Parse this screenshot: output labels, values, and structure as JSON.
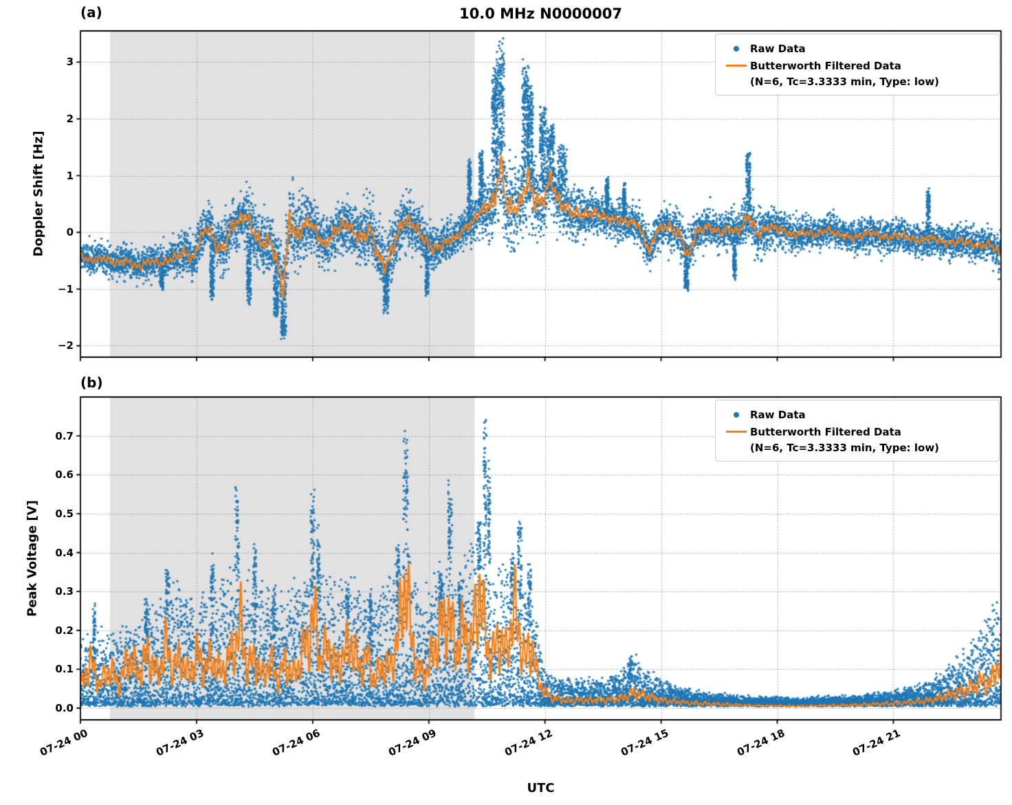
{
  "title": "10.0 MHz N0000007",
  "xlabel": "UTC",
  "colors": {
    "raw": "#1f77b4",
    "filtered": "#ff7f0e",
    "shade": "#e1e1e1",
    "grid": "#999999",
    "axis": "#000000"
  },
  "legend": {
    "raw_label": "Raw Data",
    "filtered_label": "Butterworth Filtered Data",
    "filtered_sublabel": "(N=6, Tc=3.3333 min, Type: low)"
  },
  "x_axis": {
    "min": 0,
    "max": 23.78,
    "tick_values": [
      0,
      3,
      6,
      9,
      12,
      15,
      18,
      21
    ],
    "tick_labels": [
      "07-24 00",
      "07-24 03",
      "07-24 06",
      "07-24 09",
      "07-24 12",
      "07-24 15",
      "07-24 18",
      "07-24 21"
    ]
  },
  "shaded_region": {
    "start": 0.76,
    "end": 10.18
  },
  "chart_data": [
    {
      "type": "scatter",
      "panel_label": "(a)",
      "ylabel": "Doppler Shift [Hz]",
      "ylim": [
        -2.2,
        3.55
      ],
      "ytick_values": [
        3,
        2,
        1,
        0,
        -1,
        -2
      ],
      "ytick_labels": [
        "3",
        "2",
        "1",
        "0",
        "−1",
        "−2"
      ],
      "series": [
        {
          "name": "Raw Data",
          "kind": "scatter"
        },
        {
          "name": "Butterworth Filtered Data (N=6, Tc=3.3333 min, Type: low)",
          "kind": "line"
        }
      ],
      "filtered_t": [
        0,
        0.3,
        0.6,
        0.9,
        1.2,
        1.5,
        1.8,
        2.1,
        2.4,
        2.7,
        2.9,
        3.1,
        3.3,
        3.5,
        3.7,
        3.9,
        4.1,
        4.3,
        4.5,
        4.7,
        4.9,
        5.1,
        5.25,
        5.4,
        5.55,
        5.7,
        5.9,
        6.1,
        6.3,
        6.5,
        6.7,
        6.9,
        7.1,
        7.3,
        7.5,
        7.7,
        7.9,
        8.1,
        8.3,
        8.5,
        8.7,
        8.9,
        9.1,
        9.3,
        9.5,
        9.7,
        9.9,
        10.1,
        10.3,
        10.5,
        10.7,
        10.85,
        11.0,
        11.2,
        11.4,
        11.55,
        11.7,
        11.9,
        12.0,
        12.15,
        12.3,
        12.5,
        12.7,
        13.0,
        13.3,
        13.6,
        14.0,
        14.4,
        14.7,
        14.9,
        15.2,
        15.5,
        15.7,
        15.9,
        16.2,
        16.5,
        16.8,
        17.0,
        17.25,
        17.5,
        17.8,
        18.1,
        18.4,
        18.7,
        19.0,
        19.3,
        19.6,
        20.0,
        20.4,
        20.8,
        21.2,
        21.6,
        22.0,
        22.4,
        22.8,
        23.2,
        23.5,
        23.78
      ],
      "filtered_v": [
        -0.42,
        -0.5,
        -0.45,
        -0.55,
        -0.5,
        -0.62,
        -0.5,
        -0.55,
        -0.45,
        -0.35,
        -0.5,
        -0.1,
        0.1,
        -0.25,
        -0.3,
        0.1,
        0.2,
        0.3,
        -0.05,
        -0.2,
        -0.15,
        -0.6,
        -1.05,
        0.3,
        -0.1,
        0.05,
        0.2,
        0.0,
        -0.25,
        -0.05,
        0.1,
        0.15,
        -0.05,
        -0.1,
        0.05,
        -0.45,
        -0.6,
        -0.2,
        0.15,
        0.2,
        0.05,
        -0.15,
        -0.3,
        -0.25,
        -0.15,
        -0.1,
        0.05,
        0.15,
        0.35,
        0.45,
        0.55,
        1.25,
        0.5,
        0.4,
        0.55,
        1.0,
        0.6,
        0.5,
        0.65,
        1.0,
        0.6,
        0.45,
        0.35,
        0.3,
        0.35,
        0.25,
        0.2,
        0.15,
        -0.35,
        0.05,
        0.1,
        -0.05,
        -0.45,
        0.0,
        0.1,
        0.0,
        0.05,
        0.0,
        0.3,
        -0.05,
        0.1,
        0.05,
        -0.05,
        0.0,
        -0.05,
        0.05,
        -0.05,
        -0.1,
        0.0,
        -0.1,
        -0.05,
        -0.15,
        -0.1,
        -0.2,
        -0.15,
        -0.25,
        -0.2,
        -0.4
      ],
      "noise_t": [
        0,
        1,
        2,
        3,
        4,
        5,
        5.3,
        6,
        7,
        7.9,
        8.5,
        9,
        9.8,
        10.3,
        10.85,
        11.3,
        11.6,
        12,
        12.3,
        13,
        14,
        15,
        15.7,
        16,
        17,
        17.3,
        18,
        19,
        20,
        21,
        22,
        23,
        23.78
      ],
      "noise_v": [
        0.22,
        0.25,
        0.25,
        0.35,
        0.4,
        0.5,
        0.65,
        0.4,
        0.4,
        0.55,
        0.4,
        0.35,
        0.3,
        0.35,
        0.75,
        0.55,
        0.8,
        0.55,
        0.5,
        0.35,
        0.3,
        0.3,
        0.4,
        0.3,
        0.28,
        0.4,
        0.28,
        0.25,
        0.25,
        0.25,
        0.25,
        0.25,
        0.28
      ],
      "spikes": [
        [
          10.85,
          3.35,
          0.1
        ],
        [
          10.7,
          2.85,
          0.07
        ],
        [
          11.5,
          3.0,
          0.09
        ],
        [
          11.62,
          2.55,
          0.07
        ],
        [
          11.95,
          2.2,
          0.08
        ],
        [
          12.15,
          1.9,
          0.09
        ],
        [
          12.45,
          1.6,
          0.12
        ],
        [
          10.35,
          1.45,
          0.05
        ],
        [
          10.05,
          1.3,
          0.04
        ],
        [
          17.25,
          1.5,
          0.05
        ],
        [
          21.9,
          0.75,
          0.04
        ],
        [
          13.6,
          0.95,
          0.04
        ],
        [
          14.05,
          0.85,
          0.03
        ],
        [
          5.25,
          -1.9,
          0.07
        ],
        [
          5.05,
          -1.5,
          0.05
        ],
        [
          7.9,
          -1.45,
          0.07
        ],
        [
          4.35,
          -1.3,
          0.05
        ],
        [
          15.65,
          -1.1,
          0.05
        ],
        [
          3.4,
          -1.2,
          0.05
        ],
        [
          2.1,
          -1.0,
          0.04
        ],
        [
          8.95,
          -1.1,
          0.04
        ],
        [
          16.9,
          -0.85,
          0.04
        ]
      ]
    },
    {
      "type": "scatter",
      "panel_label": "(b)",
      "ylabel": "Peak Voltage [V]",
      "ylim": [
        -0.03,
        0.8
      ],
      "ytick_values": [
        0.7,
        0.6,
        0.5,
        0.4,
        0.3,
        0.2,
        0.1,
        0.0
      ],
      "ytick_labels": [
        "0.7",
        "0.6",
        "0.5",
        "0.4",
        "0.3",
        "0.2",
        "0.1",
        "0.0"
      ],
      "series": [
        {
          "name": "Raw Data",
          "kind": "scatter"
        },
        {
          "name": "Butterworth Filtered Data (N=6, Tc=3.3333 min, Type: low)",
          "kind": "line"
        }
      ],
      "filtered_t": [
        0,
        0.25,
        0.5,
        0.75,
        1.0,
        1.25,
        1.5,
        1.75,
        2.0,
        2.2,
        2.4,
        2.6,
        2.8,
        3.0,
        3.2,
        3.4,
        3.6,
        3.8,
        4.0,
        4.15,
        4.3,
        4.5,
        4.7,
        4.9,
        5.1,
        5.3,
        5.5,
        5.7,
        5.9,
        6.05,
        6.2,
        6.4,
        6.6,
        6.8,
        7.0,
        7.2,
        7.4,
        7.6,
        7.8,
        8.0,
        8.2,
        8.4,
        8.55,
        8.7,
        8.9,
        9.1,
        9.3,
        9.5,
        9.7,
        9.9,
        10.1,
        10.3,
        10.45,
        10.6,
        10.8,
        11.0,
        11.2,
        11.35,
        11.5,
        11.65,
        11.8,
        12.0,
        12.2,
        12.5,
        13.0,
        13.5,
        14.0,
        14.3,
        14.6,
        15.0,
        15.5,
        16.0,
        16.5,
        17.0,
        17.5,
        18.0,
        18.5,
        19.0,
        19.5,
        20.0,
        20.5,
        21.0,
        21.5,
        22.0,
        22.5,
        23.0,
        23.3,
        23.5,
        23.65,
        23.78
      ],
      "filtered_v": [
        0.05,
        0.12,
        0.06,
        0.1,
        0.06,
        0.13,
        0.09,
        0.14,
        0.08,
        0.16,
        0.1,
        0.13,
        0.08,
        0.14,
        0.1,
        0.13,
        0.09,
        0.12,
        0.16,
        0.22,
        0.1,
        0.13,
        0.08,
        0.12,
        0.07,
        0.12,
        0.08,
        0.13,
        0.18,
        0.24,
        0.12,
        0.16,
        0.1,
        0.14,
        0.17,
        0.1,
        0.13,
        0.07,
        0.11,
        0.1,
        0.18,
        0.34,
        0.18,
        0.1,
        0.08,
        0.14,
        0.2,
        0.24,
        0.15,
        0.2,
        0.16,
        0.31,
        0.2,
        0.12,
        0.18,
        0.14,
        0.26,
        0.18,
        0.12,
        0.17,
        0.08,
        0.04,
        0.025,
        0.02,
        0.02,
        0.02,
        0.025,
        0.04,
        0.03,
        0.02,
        0.015,
        0.012,
        0.01,
        0.008,
        0.006,
        0.006,
        0.005,
        0.006,
        0.007,
        0.008,
        0.01,
        0.012,
        0.015,
        0.02,
        0.035,
        0.05,
        0.07,
        0.06,
        0.1,
        0.12
      ],
      "envelope_t": [
        0,
        0.5,
        1,
        1.5,
        2,
        2.5,
        3,
        3.5,
        4,
        4.5,
        5,
        5.5,
        6,
        6.5,
        7,
        7.5,
        8,
        8.4,
        8.8,
        9.3,
        9.7,
        10.2,
        10.6,
        11.0,
        11.4,
        11.8,
        12.0,
        12.5,
        13,
        13.5,
        14,
        14.3,
        14.7,
        15,
        15.5,
        16,
        16.5,
        17,
        17.5,
        18,
        18.5,
        19,
        19.5,
        20,
        20.5,
        21,
        21.5,
        22,
        22.5,
        23,
        23.4,
        23.78
      ],
      "envelope_v": [
        0.15,
        0.2,
        0.18,
        0.22,
        0.25,
        0.3,
        0.25,
        0.3,
        0.35,
        0.3,
        0.28,
        0.3,
        0.35,
        0.3,
        0.3,
        0.25,
        0.3,
        0.45,
        0.25,
        0.35,
        0.3,
        0.4,
        0.3,
        0.35,
        0.3,
        0.2,
        0.08,
        0.06,
        0.06,
        0.06,
        0.08,
        0.12,
        0.08,
        0.06,
        0.04,
        0.03,
        0.025,
        0.02,
        0.015,
        0.015,
        0.012,
        0.015,
        0.018,
        0.02,
        0.025,
        0.03,
        0.04,
        0.06,
        0.1,
        0.15,
        0.2,
        0.26
      ],
      "spikes": [
        [
          0.35,
          0.27,
          0.03
        ],
        [
          1.7,
          0.28,
          0.04
        ],
        [
          2.25,
          0.37,
          0.05
        ],
        [
          3.4,
          0.41,
          0.04
        ],
        [
          4.05,
          0.58,
          0.05
        ],
        [
          4.5,
          0.44,
          0.04
        ],
        [
          5.0,
          0.32,
          0.04
        ],
        [
          6.0,
          0.56,
          0.05
        ],
        [
          6.15,
          0.46,
          0.04
        ],
        [
          6.9,
          0.31,
          0.04
        ],
        [
          7.5,
          0.3,
          0.04
        ],
        [
          8.2,
          0.42,
          0.04
        ],
        [
          8.4,
          0.7,
          0.06
        ],
        [
          9.3,
          0.35,
          0.04
        ],
        [
          9.55,
          0.58,
          0.05
        ],
        [
          9.8,
          0.35,
          0.04
        ],
        [
          10.3,
          0.5,
          0.04
        ],
        [
          10.45,
          0.755,
          0.04
        ],
        [
          10.55,
          0.62,
          0.04
        ],
        [
          11.15,
          0.4,
          0.04
        ],
        [
          11.35,
          0.5,
          0.05
        ],
        [
          11.6,
          0.37,
          0.04
        ],
        [
          14.2,
          0.13,
          0.06
        ]
      ]
    }
  ]
}
